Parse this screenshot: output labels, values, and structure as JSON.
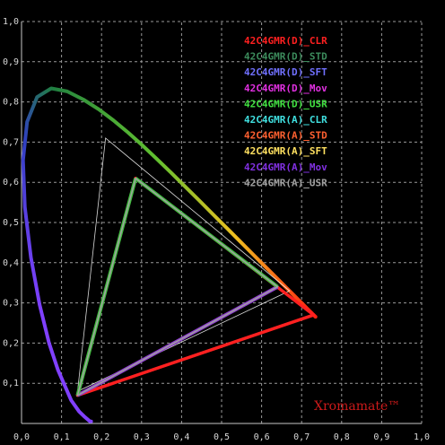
{
  "chart_data": {
    "type": "scatter",
    "title": "",
    "xlabel": "",
    "ylabel": "",
    "xlim": [
      0,
      1
    ],
    "ylim": [
      0,
      1
    ],
    "grid": true,
    "grid_style": "dashed",
    "x_ticks": [
      "0,0",
      "0,1",
      "0,2",
      "0,3",
      "0,4",
      "0,5",
      "0,6",
      "0,7",
      "0,8",
      "0,9",
      "1,0"
    ],
    "y_ticks": [
      "0,1",
      "0,2",
      "0,3",
      "0,4",
      "0,5",
      "0,6",
      "0,7",
      "0,8",
      "0,9",
      "1,0"
    ],
    "legend_position": "top-right",
    "legend": [
      {
        "label": "42C4GMR(D)_CLR",
        "color": "#ff2020"
      },
      {
        "label": "42C4GMR(D)_STD",
        "color": "#3c8c5c"
      },
      {
        "label": "42C4GMR(D)_SFT",
        "color": "#7070ff"
      },
      {
        "label": "42C4GMR(D)_Mov",
        "color": "#e030e0"
      },
      {
        "label": "42C4GMR(D)_USR",
        "color": "#40e040"
      },
      {
        "label": "42C4GMR(A)_CLR",
        "color": "#40e0e0"
      },
      {
        "label": "42C4GMR(A)_STD",
        "color": "#ff6030"
      },
      {
        "label": "42C4GMR(A)_SFT",
        "color": "#ffe060"
      },
      {
        "label": "42C4GMR(A)_Mov",
        "color": "#8030e0"
      },
      {
        "label": "42C4GMR(A)_USR",
        "color": "#a0a0a0"
      }
    ],
    "spectral_locus": [
      [
        0.1741,
        0.005
      ],
      [
        0.1738,
        0.0049
      ],
      [
        0.1736,
        0.0049
      ],
      [
        0.1733,
        0.0048
      ],
      [
        0.1726,
        0.0048
      ],
      [
        0.1714,
        0.0051
      ],
      [
        0.1689,
        0.0069
      ],
      [
        0.1644,
        0.0109
      ],
      [
        0.1566,
        0.0177
      ],
      [
        0.144,
        0.0297
      ],
      [
        0.1241,
        0.0578
      ],
      [
        0.0913,
        0.1327
      ],
      [
        0.0687,
        0.2007
      ],
      [
        0.0454,
        0.295
      ],
      [
        0.0235,
        0.4127
      ],
      [
        0.0082,
        0.5384
      ],
      [
        0.0039,
        0.6548
      ],
      [
        0.0139,
        0.7502
      ],
      [
        0.0389,
        0.812
      ],
      [
        0.0743,
        0.8338
      ],
      [
        0.1142,
        0.8262
      ],
      [
        0.1547,
        0.8059
      ],
      [
        0.1929,
        0.7816
      ],
      [
        0.2296,
        0.7543
      ],
      [
        0.2658,
        0.7243
      ],
      [
        0.3016,
        0.6923
      ],
      [
        0.3373,
        0.6589
      ],
      [
        0.3731,
        0.6245
      ],
      [
        0.4087,
        0.5896
      ],
      [
        0.4441,
        0.5547
      ],
      [
        0.4788,
        0.5202
      ],
      [
        0.5125,
        0.4866
      ],
      [
        0.5448,
        0.4544
      ],
      [
        0.5752,
        0.4242
      ],
      [
        0.6029,
        0.3965
      ],
      [
        0.627,
        0.3725
      ],
      [
        0.6482,
        0.3514
      ],
      [
        0.6658,
        0.334
      ],
      [
        0.6801,
        0.3197
      ],
      [
        0.6915,
        0.3083
      ],
      [
        0.7006,
        0.2993
      ],
      [
        0.7079,
        0.292
      ],
      [
        0.714,
        0.2859
      ],
      [
        0.719,
        0.2809
      ],
      [
        0.723,
        0.277
      ],
      [
        0.726,
        0.274
      ],
      [
        0.7283,
        0.2717
      ],
      [
        0.73,
        0.27
      ],
      [
        0.7311,
        0.2689
      ],
      [
        0.732,
        0.268
      ],
      [
        0.7327,
        0.2673
      ],
      [
        0.7334,
        0.2666
      ],
      [
        0.734,
        0.266
      ],
      [
        0.7344,
        0.2656
      ],
      [
        0.7346,
        0.2654
      ],
      [
        0.7347,
        0.2653
      ]
    ],
    "gamuts": [
      {
        "name": "42C4GMR(D)_CLR",
        "color": "#ff2020",
        "points": [
          [
            0.73,
            0.27
          ],
          [
            0.285,
            0.61
          ],
          [
            0.14,
            0.07
          ]
        ]
      },
      {
        "name": "42C4GMR(D)_STD",
        "color": "#3c8c5c",
        "points": [
          [
            0.64,
            0.34
          ],
          [
            0.285,
            0.61
          ],
          [
            0.14,
            0.07
          ]
        ]
      },
      {
        "name": "42C4GMR(D)_SFT",
        "color": "#7070ff",
        "points": [
          [
            0.64,
            0.34
          ],
          [
            0.285,
            0.61
          ],
          [
            0.14,
            0.07
          ]
        ]
      },
      {
        "name": "42C4GMR(D)_Mov",
        "color": "#e030e0",
        "points": [
          [
            0.64,
            0.34
          ],
          [
            0.285,
            0.61
          ],
          [
            0.14,
            0.07
          ]
        ]
      },
      {
        "name": "42C4GMR(D)_USR",
        "color": "#40e040",
        "points": [
          [
            0.64,
            0.34
          ],
          [
            0.285,
            0.61
          ],
          [
            0.14,
            0.07
          ]
        ]
      },
      {
        "name": "42C4GMR(A)_CLR",
        "color": "#40e0e0",
        "points": [
          [
            0.64,
            0.34
          ],
          [
            0.285,
            0.61
          ],
          [
            0.14,
            0.07
          ]
        ]
      },
      {
        "name": "42C4GMR(A)_STD",
        "color": "#ff6030",
        "points": [
          [
            0.64,
            0.34
          ],
          [
            0.285,
            0.61
          ],
          [
            0.14,
            0.07
          ]
        ]
      },
      {
        "name": "42C4GMR(A)_SFT",
        "color": "#ffe060",
        "points": [
          [
            0.64,
            0.34
          ],
          [
            0.285,
            0.61
          ],
          [
            0.14,
            0.07
          ]
        ]
      },
      {
        "name": "42C4GMR(A)_Mov",
        "color": "#8030e0",
        "points": [
          [
            0.64,
            0.34
          ],
          [
            0.285,
            0.61
          ],
          [
            0.14,
            0.07
          ]
        ]
      },
      {
        "name": "42C4GMR(A)_USR",
        "color": "#a0a0a0",
        "points": [
          [
            0.64,
            0.34
          ],
          [
            0.285,
            0.61
          ],
          [
            0.14,
            0.07
          ]
        ]
      }
    ],
    "reference_triangle": {
      "color": "#ffffff",
      "points": [
        [
          0.67,
          0.33
        ],
        [
          0.21,
          0.71
        ],
        [
          0.14,
          0.08
        ]
      ]
    }
  },
  "brand": {
    "text": "Xromamate™",
    "color": "#cc1a1a"
  }
}
